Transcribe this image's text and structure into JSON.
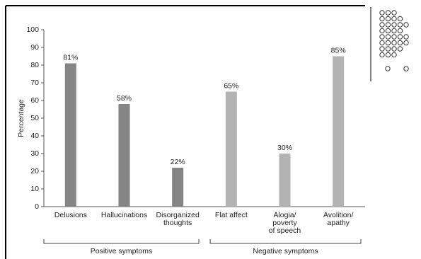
{
  "chart_data": {
    "type": "bar",
    "y_label": "Percentage",
    "categories": [
      [
        "Delusions"
      ],
      [
        "Hallucinations"
      ],
      [
        "Disorganized",
        "thoughts"
      ],
      [
        "Flat affect"
      ],
      [
        "Alogia/",
        "poverty",
        "of speech"
      ],
      [
        "Avolition/",
        "apathy"
      ]
    ],
    "series": [
      {
        "name": "Positive symptoms",
        "color": "#858585",
        "values": [
          81,
          58,
          22,
          null,
          null,
          null
        ],
        "value_labels": [
          "81%",
          "58%",
          "22%",
          null,
          null,
          null
        ]
      },
      {
        "name": "Negative symptoms",
        "color": "#b3b3b3",
        "values": [
          null,
          null,
          null,
          65,
          30,
          85
        ],
        "value_labels": [
          null,
          null,
          null,
          "65%",
          "30%",
          "85%"
        ]
      }
    ],
    "ylim": [
      0,
      100
    ],
    "yticks": [
      0,
      10,
      20,
      30,
      40,
      50,
      60,
      70,
      80,
      90,
      100
    ]
  }
}
